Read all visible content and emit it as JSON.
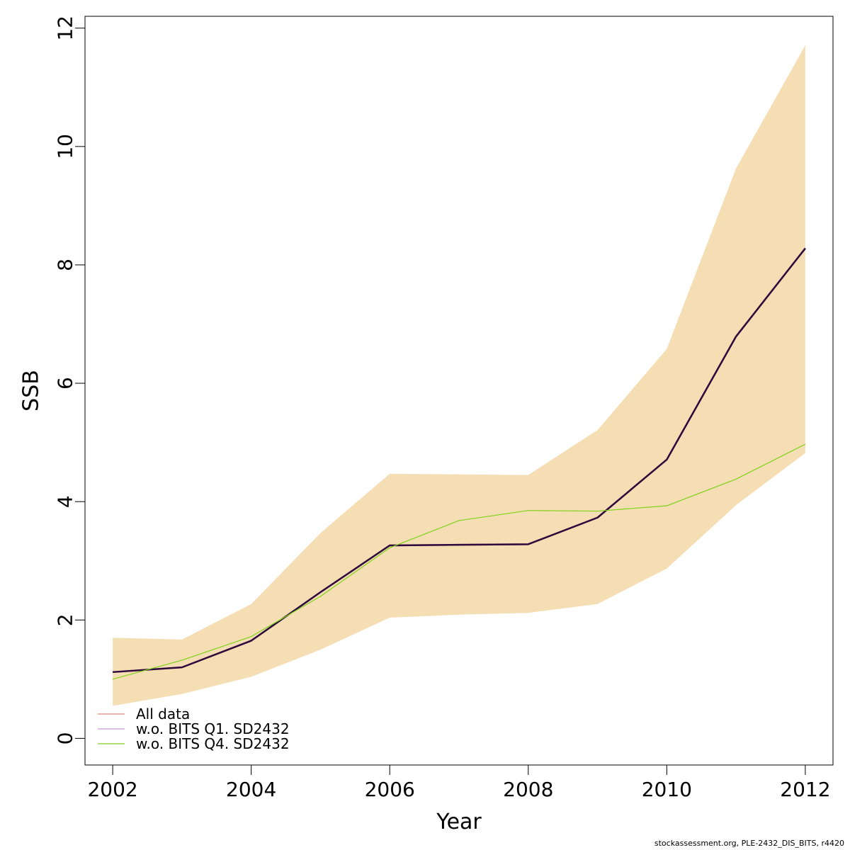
{
  "chart_data": {
    "type": "line",
    "title": "",
    "xlabel": "Year",
    "ylabel": "SSB",
    "xlim": [
      2001.6,
      2012.4
    ],
    "ylim": [
      -0.45,
      12.2
    ],
    "x_ticks": [
      2002,
      2004,
      2006,
      2008,
      2010,
      2012
    ],
    "y_ticks": [
      0,
      2,
      4,
      6,
      8,
      10,
      12
    ],
    "grid": false,
    "legend_position": "bottom-left",
    "x": [
      2002,
      2003,
      2004,
      2005,
      2006,
      2007,
      2008,
      2009,
      2010,
      2011,
      2012
    ],
    "band": {
      "color": "#F5DEB3",
      "lower": [
        0.55,
        0.75,
        1.04,
        1.5,
        2.04,
        2.09,
        2.12,
        2.27,
        2.87,
        3.94,
        4.82
      ],
      "upper": [
        1.7,
        1.67,
        2.27,
        3.47,
        4.47,
        4.46,
        4.45,
        5.21,
        6.58,
        9.63,
        11.71
      ]
    },
    "series": [
      {
        "name": "All data",
        "color": "#F08080",
        "width": 2.5,
        "legend_color": "#F08080",
        "values": [
          1.12,
          1.2,
          1.65,
          2.47,
          3.26,
          3.27,
          3.28,
          3.73,
          4.71,
          6.79,
          8.28
        ]
      },
      {
        "name": "w.o. BITS Q1. SD2432",
        "color": "#2B0A3D",
        "width": 2.5,
        "legend_color": "#C39BD3",
        "values": [
          1.12,
          1.2,
          1.65,
          2.47,
          3.26,
          3.27,
          3.28,
          3.73,
          4.71,
          6.79,
          8.28
        ]
      },
      {
        "name": "w.o. BITS Q4. SD2432",
        "color": "#7FD11B",
        "width": 1.2,
        "legend_color": "#7FD11B",
        "values": [
          1.0,
          1.32,
          1.72,
          2.4,
          3.22,
          3.68,
          3.85,
          3.84,
          3.93,
          4.38,
          4.97
        ]
      }
    ]
  },
  "footer": "stockassessment.org, PLE-2432_DIS_BITS, r4420"
}
